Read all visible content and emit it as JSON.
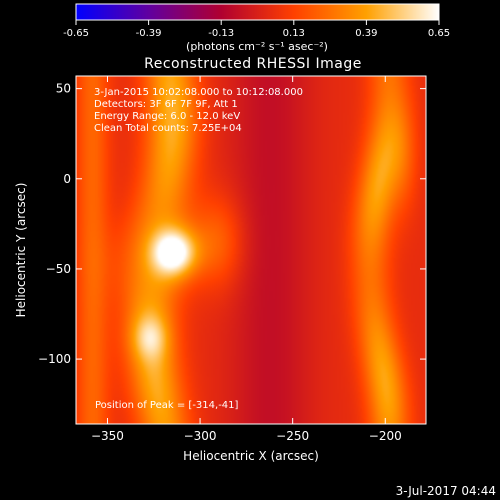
{
  "chart_data": {
    "type": "heatmap",
    "title": "Reconstructed RHESSI Image",
    "xlabel": "Heliocentric X (arcsec)",
    "ylabel": "Heliocentric Y (arcsec)",
    "xlim": [
      -367,
      -178
    ],
    "ylim": [
      -136,
      57
    ],
    "xticks": [
      -350,
      -300,
      -250,
      -200
    ],
    "yticks": [
      50,
      0,
      -50,
      -100
    ],
    "colorbar": {
      "label": "(photons cm⁻² s⁻¹ asec⁻²)",
      "ticks": [
        "-0.65",
        "-0.39",
        "-0.13",
        "0.13",
        "0.39",
        "0.65"
      ],
      "min": -0.65,
      "max": 0.65,
      "colors": [
        "#0000ff",
        "#6000a0",
        "#b00030",
        "#ff4000",
        "#ffa000",
        "#ffffff"
      ]
    },
    "annotations": [
      "3-Jan-2015 10:02:08.000 to 10:12:08.000",
      "Detectors: 3F 6F 7F 9F, Att 1",
      "Energy Range: 6.0 - 12.0 keV",
      "Clean    Total counts: 7.25E+04"
    ],
    "peak_label": "Position of Peak = [-314,-41]",
    "peak": [
      -314,
      -41
    ],
    "features": [
      {
        "kind": "bright-band",
        "x_center": -321,
        "x_halfwidth": 14,
        "peak_y": -41,
        "peak_value": 0.65
      },
      {
        "kind": "bright-band",
        "x_center": -203,
        "x_halfwidth": 11,
        "peak_y": 10,
        "peak_value": 0.45
      },
      {
        "kind": "dark-trough",
        "x_center": -262,
        "x_halfwidth": 22,
        "min_value": 0.08
      }
    ]
  },
  "footer": {
    "date": "3-Jul-2017 04:44"
  }
}
